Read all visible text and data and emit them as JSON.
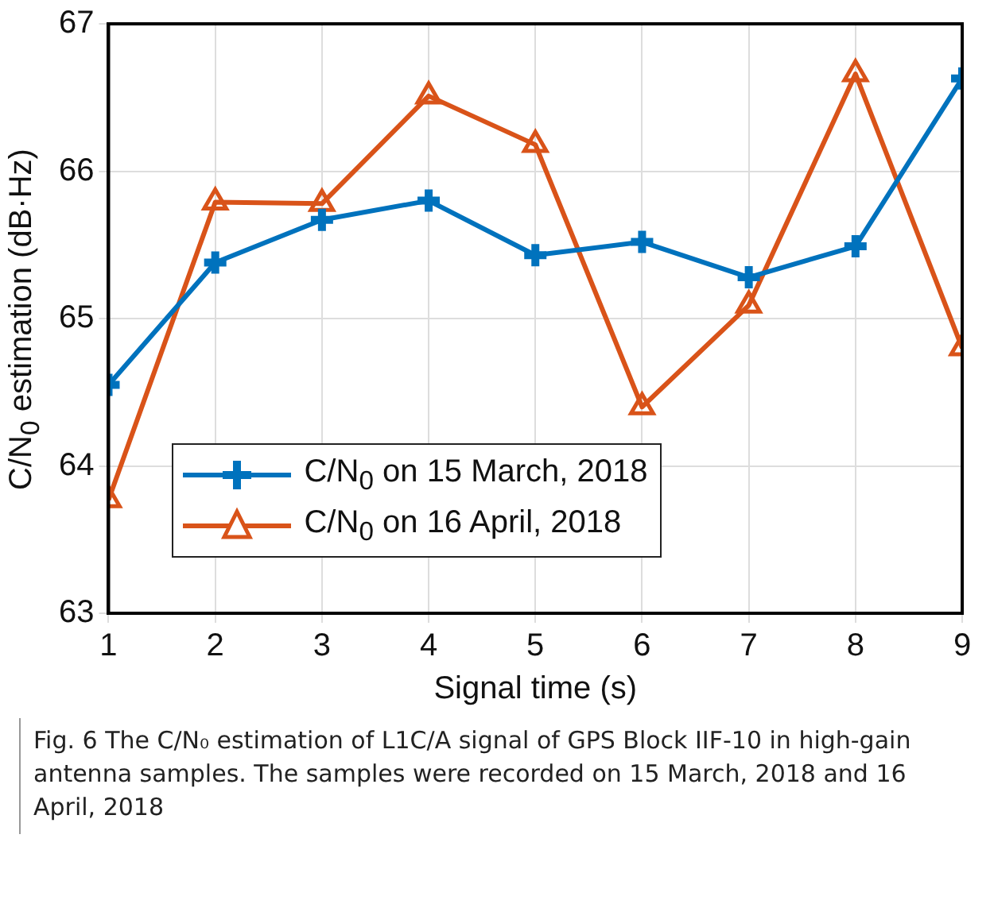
{
  "chart_data": {
    "type": "line",
    "xlabel": "Signal time (s)",
    "ylabel": "C/N$_{0}$ estimation (dB·Hz)",
    "x": [
      1,
      2,
      3,
      4,
      5,
      6,
      7,
      8,
      9
    ],
    "series": [
      {
        "name": "C/N$_{0}$ on 15 March, 2018",
        "color": "#0072bd",
        "marker": "cross",
        "values": [
          64.55,
          65.38,
          65.67,
          65.8,
          65.43,
          65.52,
          65.28,
          65.49,
          66.63
        ]
      },
      {
        "name": "C/N$_{0}$ on 16 April, 2018",
        "color": "#d95319",
        "marker": "triangle",
        "values": [
          63.77,
          65.79,
          65.78,
          66.51,
          66.18,
          64.4,
          65.09,
          66.66,
          64.8
        ]
      }
    ],
    "xlim": [
      1,
      9
    ],
    "xticks": [
      1,
      2,
      3,
      4,
      5,
      6,
      7,
      8,
      9
    ],
    "ylim": [
      63,
      67
    ],
    "yticks": [
      63,
      64,
      65,
      66,
      67
    ],
    "grid": true,
    "legend": "bottom left",
    "line_style": "solid",
    "annotations": [
      "Fig. 6 The C/N₀ estimation of L1C/A signal of GPS Block IIF-10 in high-gain antenna samples. The samples were recorded on 15 March, 2018 and 16 April, 2018"
    ]
  }
}
